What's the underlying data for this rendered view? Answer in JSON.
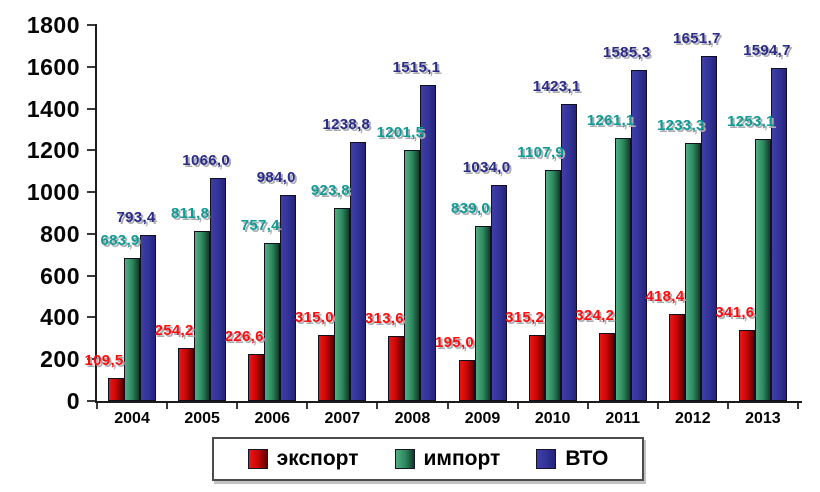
{
  "chart_data": {
    "type": "bar",
    "title": "",
    "xlabel": "",
    "ylabel": "",
    "categories": [
      "2004",
      "2005",
      "2006",
      "2007",
      "2008",
      "2009",
      "2010",
      "2011",
      "2012",
      "2013"
    ],
    "series": [
      {
        "name": "экспорт",
        "key": "export",
        "values": [
          109.5,
          254.2,
          226.6,
          315.0,
          313.6,
          195.0,
          315.2,
          324.2,
          418.4,
          341.6
        ],
        "labels": [
          "109,5",
          "254,2",
          "226,6",
          "315,0",
          "313,6",
          "195,0",
          "315,2",
          "324,2",
          "418,4",
          "341,6"
        ],
        "label_color": "#ff0d0d",
        "bar_gradient": [
          "#f11414",
          "#c50808",
          "#5c0101"
        ]
      },
      {
        "name": "импорт",
        "key": "import",
        "values": [
          683.9,
          811.8,
          757.4,
          923.8,
          1201.5,
          839.0,
          1107.9,
          1261.1,
          1233.3,
          1253.1
        ],
        "labels": [
          "683,9",
          "811,8",
          "757,4",
          "923,8",
          "1201,5",
          "839,0",
          "1107,9",
          "1261,1",
          "1233,3",
          "1253,1"
        ],
        "label_color": "#0d9c94",
        "bar_gradient": [
          "#4fae80",
          "#2e8a61",
          "#123a28"
        ]
      },
      {
        "name": "ВТО",
        "key": "vto",
        "values": [
          793.4,
          1066.0,
          984.0,
          1238.8,
          1515.1,
          1034.0,
          1423.1,
          1585.3,
          1651.7,
          1594.7
        ],
        "labels": [
          "793,4",
          "1066,0",
          "984,0",
          "1238,8",
          "1515,1",
          "1034,0",
          "1423,1",
          "1585,3",
          "1651,7",
          "1594,7"
        ],
        "label_color": "#2b2b8a",
        "bar_gradient": [
          "#3e3ea8",
          "#333399",
          "#242478"
        ]
      }
    ],
    "ylim": [
      0,
      1800
    ],
    "ytick_step": 200,
    "yticks": [
      0,
      200,
      400,
      600,
      800,
      1000,
      1200,
      1400,
      1600,
      1800
    ],
    "grid": false,
    "legend_position": "bottom",
    "decimal_separator": ","
  }
}
